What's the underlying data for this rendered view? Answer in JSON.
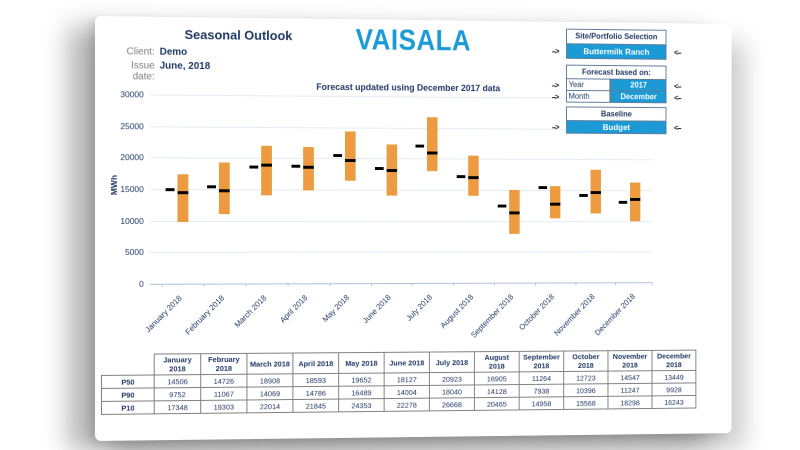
{
  "header": {
    "title": "Seasonal Outlook",
    "logo": "VAISALA",
    "client_label": "Client:",
    "client_value": "Demo",
    "issue_date_label": "Issue date:",
    "issue_date_value": "June, 2018"
  },
  "selectors": {
    "site_portfolio": {
      "header": "Site/Portfolio Selection",
      "value": "Buttermilk Ranch"
    },
    "forecast_based_on": {
      "header": "Forecast based on:",
      "year_label": "Year",
      "year_value": "2017",
      "month_label": "Month",
      "month_value": "December"
    },
    "baseline": {
      "header": "Baseline",
      "value": "Budget"
    },
    "arrow_in": "-->",
    "arrow_out": "<--"
  },
  "chart_data": {
    "type": "bar",
    "subtype": "floating range bars (P90-P10) with P50 and baseline tick markers",
    "title": "Forecast updated using December 2017 data",
    "xlabel": "",
    "ylabel": "MWh",
    "ylim": [
      0,
      30000
    ],
    "ytick_step": 5000,
    "grid": true,
    "categories": [
      "January 2018",
      "February 2018",
      "March 2018",
      "April 2018",
      "May 2018",
      "June 2018",
      "July 2018",
      "August 2018",
      "September 2018",
      "October 2018",
      "November 2018",
      "December 2018"
    ],
    "series": [
      {
        "name": "P50",
        "role": "marker",
        "color": "#000000",
        "values": [
          14506,
          14726,
          18908,
          18593,
          19652,
          18127,
          20923,
          16905,
          11264,
          12723,
          14547,
          13449
        ]
      },
      {
        "name": "P90",
        "role": "range-low",
        "color": "#ED9B40",
        "values": [
          9752,
          11067,
          14069,
          14786,
          16489,
          14004,
          18040,
          14128,
          7938,
          10396,
          11247,
          9928
        ]
      },
      {
        "name": "P10",
        "role": "range-high",
        "color": "#ED9B40",
        "values": [
          17348,
          19303,
          22014,
          21845,
          24353,
          22278,
          26668,
          20465,
          14958,
          15568,
          18298,
          16243
        ]
      },
      {
        "name": "Baseline (Budget)",
        "role": "offset-marker",
        "color": "#000000",
        "estimated": true,
        "values": [
          15000,
          15400,
          18500,
          18700,
          20400,
          18400,
          22000,
          17100,
          12400,
          15400,
          14100,
          13000
        ]
      }
    ]
  },
  "table": {
    "corner": "",
    "row_labels": [
      "P50",
      "P90",
      "P10"
    ]
  }
}
